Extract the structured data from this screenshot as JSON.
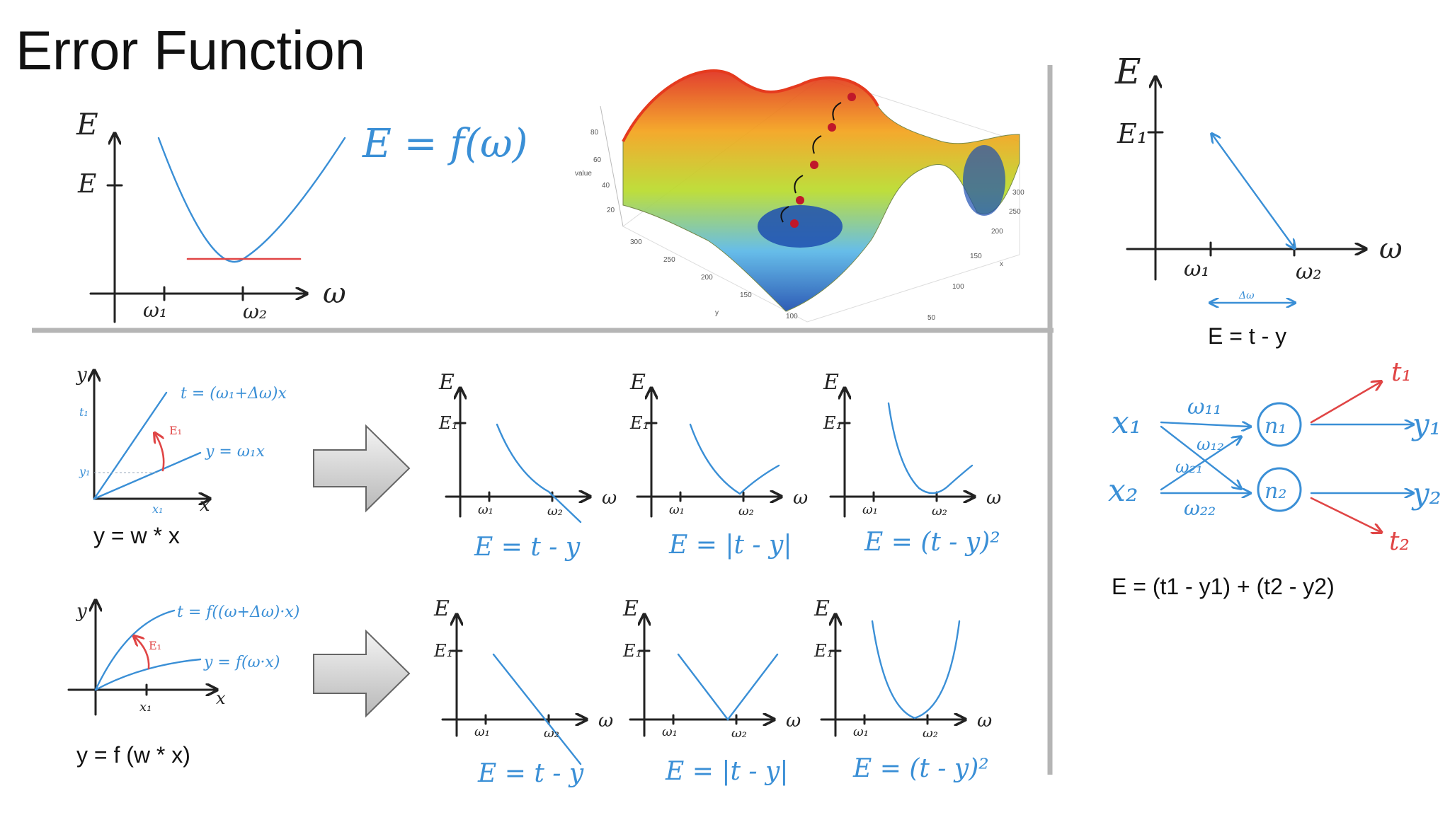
{
  "title": "Error Function",
  "top_graph": {
    "axis_e": "E",
    "axis_e1": "E",
    "tick_w1": "ω₁",
    "tick_w2": "ω₂",
    "axis_w": "ω",
    "formula": "E = f(ω)"
  },
  "surface_plot": {
    "zlabel": "value",
    "zticks": [
      "80",
      "60",
      "40",
      "20"
    ],
    "yticks": [
      "300",
      "250",
      "200",
      "150",
      "100"
    ],
    "xticks": [
      "300",
      "250",
      "200",
      "150",
      "100",
      "50"
    ],
    "ylabel": "y",
    "xlabel": "x"
  },
  "linear_panel": {
    "y_axis": "y",
    "x_axis": "x",
    "t_label": "t₁",
    "y1_label": "y₁",
    "x1_label": "x₁",
    "t_formula": "t = (ω₁+Δω)x",
    "y_formula": "y = ω₁x",
    "e_label": "E₁",
    "caption": "y = w * x"
  },
  "nonlinear_panel": {
    "y_axis": "y",
    "x_axis": "x",
    "x1_label": "x₁",
    "t_formula": "t = f((ω+Δω)·x)",
    "y_formula": "y = f(ω·x)",
    "e_label": "E₁",
    "caption": "y = f (w * x)"
  },
  "small_graphs": [
    {
      "e": "E",
      "e1": "E₁",
      "w1": "ω₁",
      "w2": "ω₂",
      "w": "ω",
      "formula": "E = t - y"
    },
    {
      "e": "E",
      "e1": "E₁",
      "w1": "ω₁",
      "w2": "ω₂",
      "w": "ω",
      "formula": "E = |t - y|"
    },
    {
      "e": "E",
      "e1": "E₁",
      "w1": "ω₁",
      "w2": "ω₂",
      "w": "ω",
      "formula": "E = (t - y)²"
    },
    {
      "e": "E",
      "e1": "E₁",
      "w1": "ω₁",
      "w2": "ω₂",
      "w": "ω",
      "formula": "E = t - y"
    },
    {
      "e": "E",
      "e1": "E₁",
      "w1": "ω₁",
      "w2": "ω₂",
      "w": "ω",
      "formula": "E = |t - y|"
    },
    {
      "e": "E",
      "e1": "E₁",
      "w1": "ω₁",
      "w2": "ω₂",
      "w": "ω",
      "formula": "E = (t - y)²"
    }
  ],
  "right_graph": {
    "axis_e": "E",
    "e1": "E₁",
    "w1": "ω₁",
    "w2": "ω₂",
    "w": "ω",
    "delta": "Δω",
    "caption": "E = t - y"
  },
  "network": {
    "x1": "x₁",
    "x2": "x₂",
    "w11": "ω₁₁",
    "w12": "ω₁₂",
    "w21": "ω₂₁",
    "w22": "ω₂₂",
    "n1": "n₁",
    "n2": "n₂",
    "t1": "t₁",
    "t2": "t₂",
    "y1": "y₁",
    "y2": "y₂",
    "caption": "E = (t1 - y1) + (t2 - y2)"
  },
  "colors": {
    "ink": "#222222",
    "handwriting_blue": "#3a8fd6",
    "highlight_red": "#e04545",
    "divider": "#b5b5b5",
    "arrow_fill": "#cfcfcf"
  }
}
